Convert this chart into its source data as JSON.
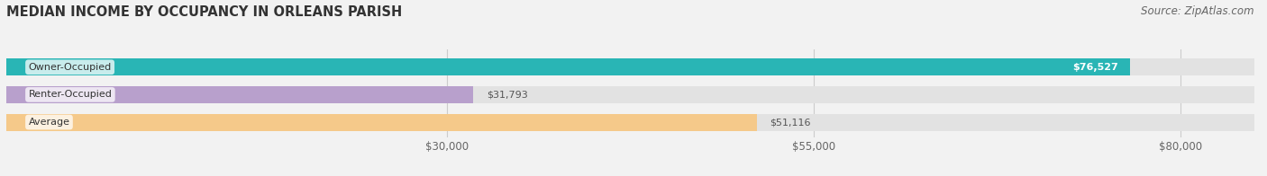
{
  "title": "MEDIAN INCOME BY OCCUPANCY IN ORLEANS PARISH",
  "source": "Source: ZipAtlas.com",
  "categories": [
    "Owner-Occupied",
    "Renter-Occupied",
    "Average"
  ],
  "values": [
    76527,
    31793,
    51116
  ],
  "bar_colors": [
    "#29b5b5",
    "#b8a0cc",
    "#f5c98a"
  ],
  "value_labels": [
    "$76,527",
    "$31,793",
    "$51,116"
  ],
  "x_ticks": [
    30000,
    55000,
    80000
  ],
  "x_tick_labels": [
    "$30,000",
    "$55,000",
    "$80,000"
  ],
  "xlim": [
    0,
    85000
  ],
  "background_color": "#f2f2f2",
  "bar_background_color": "#e2e2e2",
  "title_fontsize": 10.5,
  "source_fontsize": 8.5,
  "label_fontsize": 8,
  "value_fontsize": 8
}
